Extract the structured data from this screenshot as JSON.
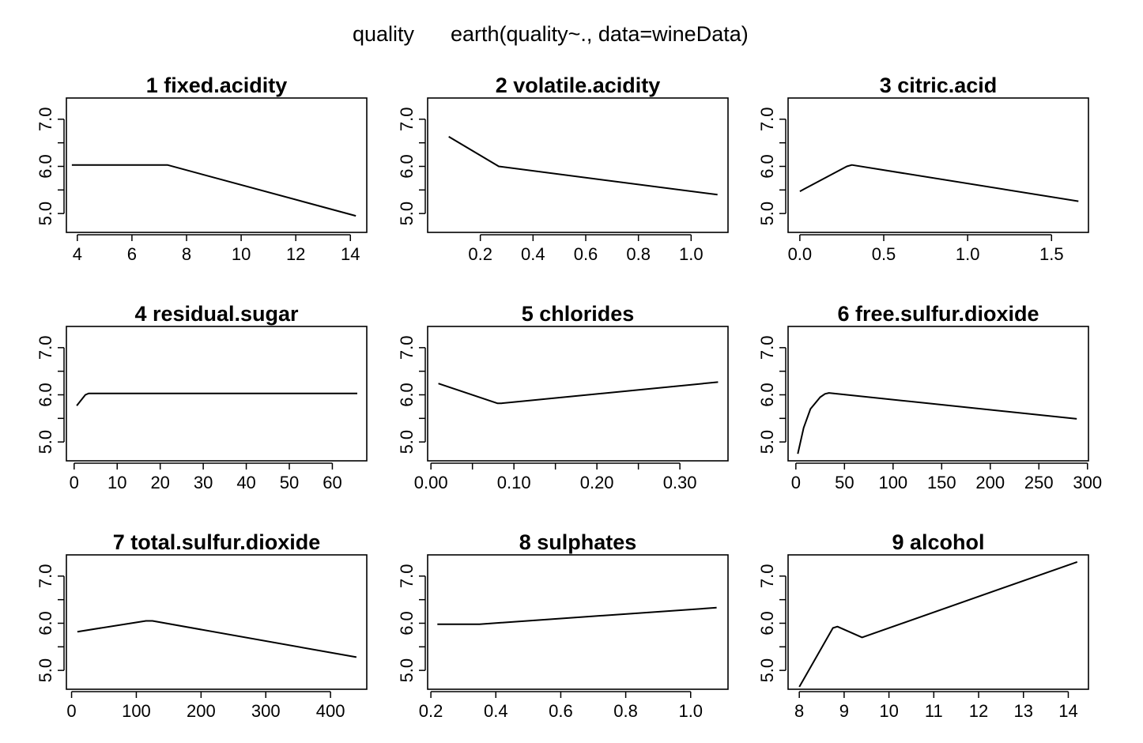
{
  "main_title": {
    "response": "quality",
    "model": "earth(quality~., data=wineData)"
  },
  "chart_data": [
    {
      "type": "line",
      "title": "1  fixed.acidity",
      "xlim": [
        3.6,
        14.6
      ],
      "ylim": [
        4.6,
        7.45
      ],
      "xticks": [
        4,
        6,
        8,
        10,
        12,
        14
      ],
      "xtick_labels": [
        "4",
        "6",
        "8",
        "10",
        "12",
        "14"
      ],
      "yticks": [
        5.0,
        5.5,
        6.0,
        6.5,
        7.0
      ],
      "ytick_labels": [
        "5.0",
        "",
        "6.0",
        "",
        "7.0"
      ],
      "x": [
        3.8,
        7.3,
        14.2
      ],
      "y": [
        6.03,
        6.03,
        4.95
      ]
    },
    {
      "type": "line",
      "title": "2  volatile.acidity",
      "xlim": [
        0.0,
        1.14
      ],
      "ylim": [
        4.6,
        7.45
      ],
      "xticks": [
        0.2,
        0.4,
        0.6,
        0.8,
        1.0
      ],
      "xtick_labels": [
        "0.2",
        "0.4",
        "0.6",
        "0.8",
        "1.0"
      ],
      "yticks": [
        5.0,
        5.5,
        6.0,
        6.5,
        7.0
      ],
      "ytick_labels": [
        "5.0",
        "",
        "6.0",
        "",
        "7.0"
      ],
      "x": [
        0.08,
        0.27,
        1.1
      ],
      "y": [
        6.63,
        6.0,
        5.4
      ]
    },
    {
      "type": "line",
      "title": "3  citric.acid",
      "xlim": [
        -0.07,
        1.72
      ],
      "ylim": [
        4.6,
        7.45
      ],
      "xticks": [
        0.0,
        0.5,
        1.0,
        1.5
      ],
      "xtick_labels": [
        "0.0",
        "0.5",
        "1.0",
        "1.5"
      ],
      "yticks": [
        5.0,
        5.5,
        6.0,
        6.5,
        7.0
      ],
      "ytick_labels": [
        "5.0",
        "",
        "6.0",
        "",
        "7.0"
      ],
      "x": [
        0.0,
        0.28,
        0.31,
        1.66
      ],
      "y": [
        5.47,
        6.0,
        6.03,
        5.26
      ]
    },
    {
      "type": "line",
      "title": "4  residual.sugar",
      "xlim": [
        -1.8,
        68.0
      ],
      "ylim": [
        4.6,
        7.45
      ],
      "xticks": [
        0,
        10,
        20,
        30,
        40,
        50,
        60
      ],
      "xtick_labels": [
        "0",
        "10",
        "20",
        "30",
        "40",
        "50",
        "60"
      ],
      "yticks": [
        5.0,
        5.5,
        6.0,
        6.5,
        7.0
      ],
      "ytick_labels": [
        "5.0",
        "",
        "6.0",
        "",
        "7.0"
      ],
      "x": [
        0.6,
        2.6,
        3.4,
        65.8
      ],
      "y": [
        5.77,
        6.0,
        6.03,
        6.03
      ]
    },
    {
      "type": "line",
      "title": "5  chlorides",
      "xlim": [
        -0.004,
        0.358
      ],
      "ylim": [
        4.6,
        7.45
      ],
      "xticks": [
        0.0,
        0.05,
        0.1,
        0.15,
        0.2,
        0.25,
        0.3
      ],
      "xtick_labels": [
        "0.00",
        "",
        "0.10",
        "",
        "0.20",
        "",
        "0.30"
      ],
      "yticks": [
        5.0,
        5.5,
        6.0,
        6.5,
        7.0
      ],
      "ytick_labels": [
        "5.0",
        "",
        "6.0",
        "",
        "7.0"
      ],
      "x": [
        0.009,
        0.08,
        0.085,
        0.346
      ],
      "y": [
        6.24,
        5.82,
        5.82,
        6.27
      ]
    },
    {
      "type": "line",
      "title": "6  free.sulfur.dioxide",
      "xlim": [
        -8.0,
        301.0
      ],
      "ylim": [
        4.6,
        7.45
      ],
      "xticks": [
        0,
        50,
        100,
        150,
        200,
        250,
        300
      ],
      "xtick_labels": [
        "0",
        "50",
        "100",
        "150",
        "200",
        "250",
        "300"
      ],
      "yticks": [
        5.0,
        5.5,
        6.0,
        6.5,
        7.0
      ],
      "ytick_labels": [
        "5.0",
        "",
        "6.0",
        "",
        "7.0"
      ],
      "x": [
        2,
        8,
        15,
        25,
        30,
        34,
        289
      ],
      "y": [
        4.75,
        5.3,
        5.7,
        5.95,
        6.02,
        6.04,
        5.49
      ]
    },
    {
      "type": "line",
      "title": "7  total.sulfur.dioxide",
      "xlim": [
        -8.0,
        456.0
      ],
      "ylim": [
        4.6,
        7.45
      ],
      "xticks": [
        0,
        100,
        200,
        300,
        400
      ],
      "xtick_labels": [
        "0",
        "100",
        "200",
        "300",
        "400"
      ],
      "yticks": [
        5.0,
        5.5,
        6.0,
        6.5,
        7.0
      ],
      "ytick_labels": [
        "5.0",
        "",
        "6.0",
        "",
        "7.0"
      ],
      "x": [
        9,
        115,
        125,
        440
      ],
      "y": [
        5.82,
        6.05,
        6.05,
        5.28
      ]
    },
    {
      "type": "line",
      "title": "8  sulphates",
      "xlim": [
        0.19,
        1.115
      ],
      "ylim": [
        4.6,
        7.45
      ],
      "xticks": [
        0.2,
        0.4,
        0.6,
        0.8,
        1.0
      ],
      "xtick_labels": [
        "0.2",
        "0.4",
        "0.6",
        "0.8",
        "1.0"
      ],
      "yticks": [
        5.0,
        5.5,
        6.0,
        6.5,
        7.0
      ],
      "ytick_labels": [
        "5.0",
        "",
        "6.0",
        "",
        "7.0"
      ],
      "x": [
        0.22,
        0.35,
        1.08
      ],
      "y": [
        5.98,
        5.98,
        6.33
      ]
    },
    {
      "type": "line",
      "title": "9  alcohol",
      "xlim": [
        7.75,
        14.45
      ],
      "ylim": [
        4.6,
        7.45
      ],
      "xticks": [
        8,
        9,
        10,
        11,
        12,
        13,
        14
      ],
      "xtick_labels": [
        "8",
        "9",
        "10",
        "11",
        "12",
        "13",
        "14"
      ],
      "yticks": [
        5.0,
        5.5,
        6.0,
        6.5,
        7.0
      ],
      "ytick_labels": [
        "5.0",
        "",
        "6.0",
        "",
        "7.0"
      ],
      "x": [
        8.0,
        8.75,
        8.85,
        9.4,
        14.2
      ],
      "y": [
        4.65,
        5.9,
        5.93,
        5.7,
        7.3
      ]
    }
  ]
}
